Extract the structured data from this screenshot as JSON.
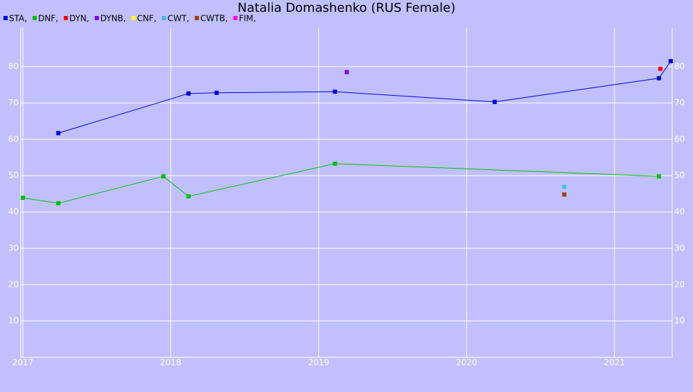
{
  "chart_data": {
    "type": "line",
    "title": "Natalia Domashenko (RUS Female)",
    "xlim": [
      2016.986,
      2021.39
    ],
    "xticks": [
      2017,
      2018,
      2019,
      2020,
      2021
    ],
    "ylim": [
      0,
      90.7
    ],
    "yticks": [
      10,
      20,
      30,
      40,
      50,
      60,
      70,
      80
    ],
    "grid": true,
    "series": [
      {
        "name": "STA,",
        "color": "#0000e0",
        "x": [
          2017.24,
          2018.12,
          2018.31,
          2019.11,
          2020.19,
          2021.3,
          2021.38
        ],
        "values": [
          61.7,
          72.6,
          72.8,
          73.1,
          70.3,
          76.8,
          81.5
        ]
      },
      {
        "name": "DNF,",
        "color": "#00c000",
        "x": [
          2017.0,
          2017.24,
          2017.95,
          2018.12,
          2019.11,
          2021.3
        ],
        "values": [
          43.9,
          42.4,
          49.8,
          44.3,
          53.3,
          49.8
        ]
      },
      {
        "name": "DYN,",
        "color": "#ff0000",
        "x": [
          2021.31
        ],
        "values": [
          79.4
        ]
      },
      {
        "name": "DYNB,",
        "color": "#8000ff",
        "x": [
          2019.19
        ],
        "values": [
          78.5
        ]
      },
      {
        "name": "CNF,",
        "color": "#ffff00",
        "x": [],
        "values": []
      },
      {
        "name": "CWT,",
        "color": "#40c0e0",
        "x": [
          2020.66
        ],
        "values": [
          46.9
        ]
      },
      {
        "name": "CWTB,",
        "color": "#a04000",
        "x": [
          2020.66
        ],
        "values": [
          44.8
        ]
      },
      {
        "name": "FIM,",
        "color": "#ff00ff",
        "x": [],
        "values": []
      }
    ]
  }
}
